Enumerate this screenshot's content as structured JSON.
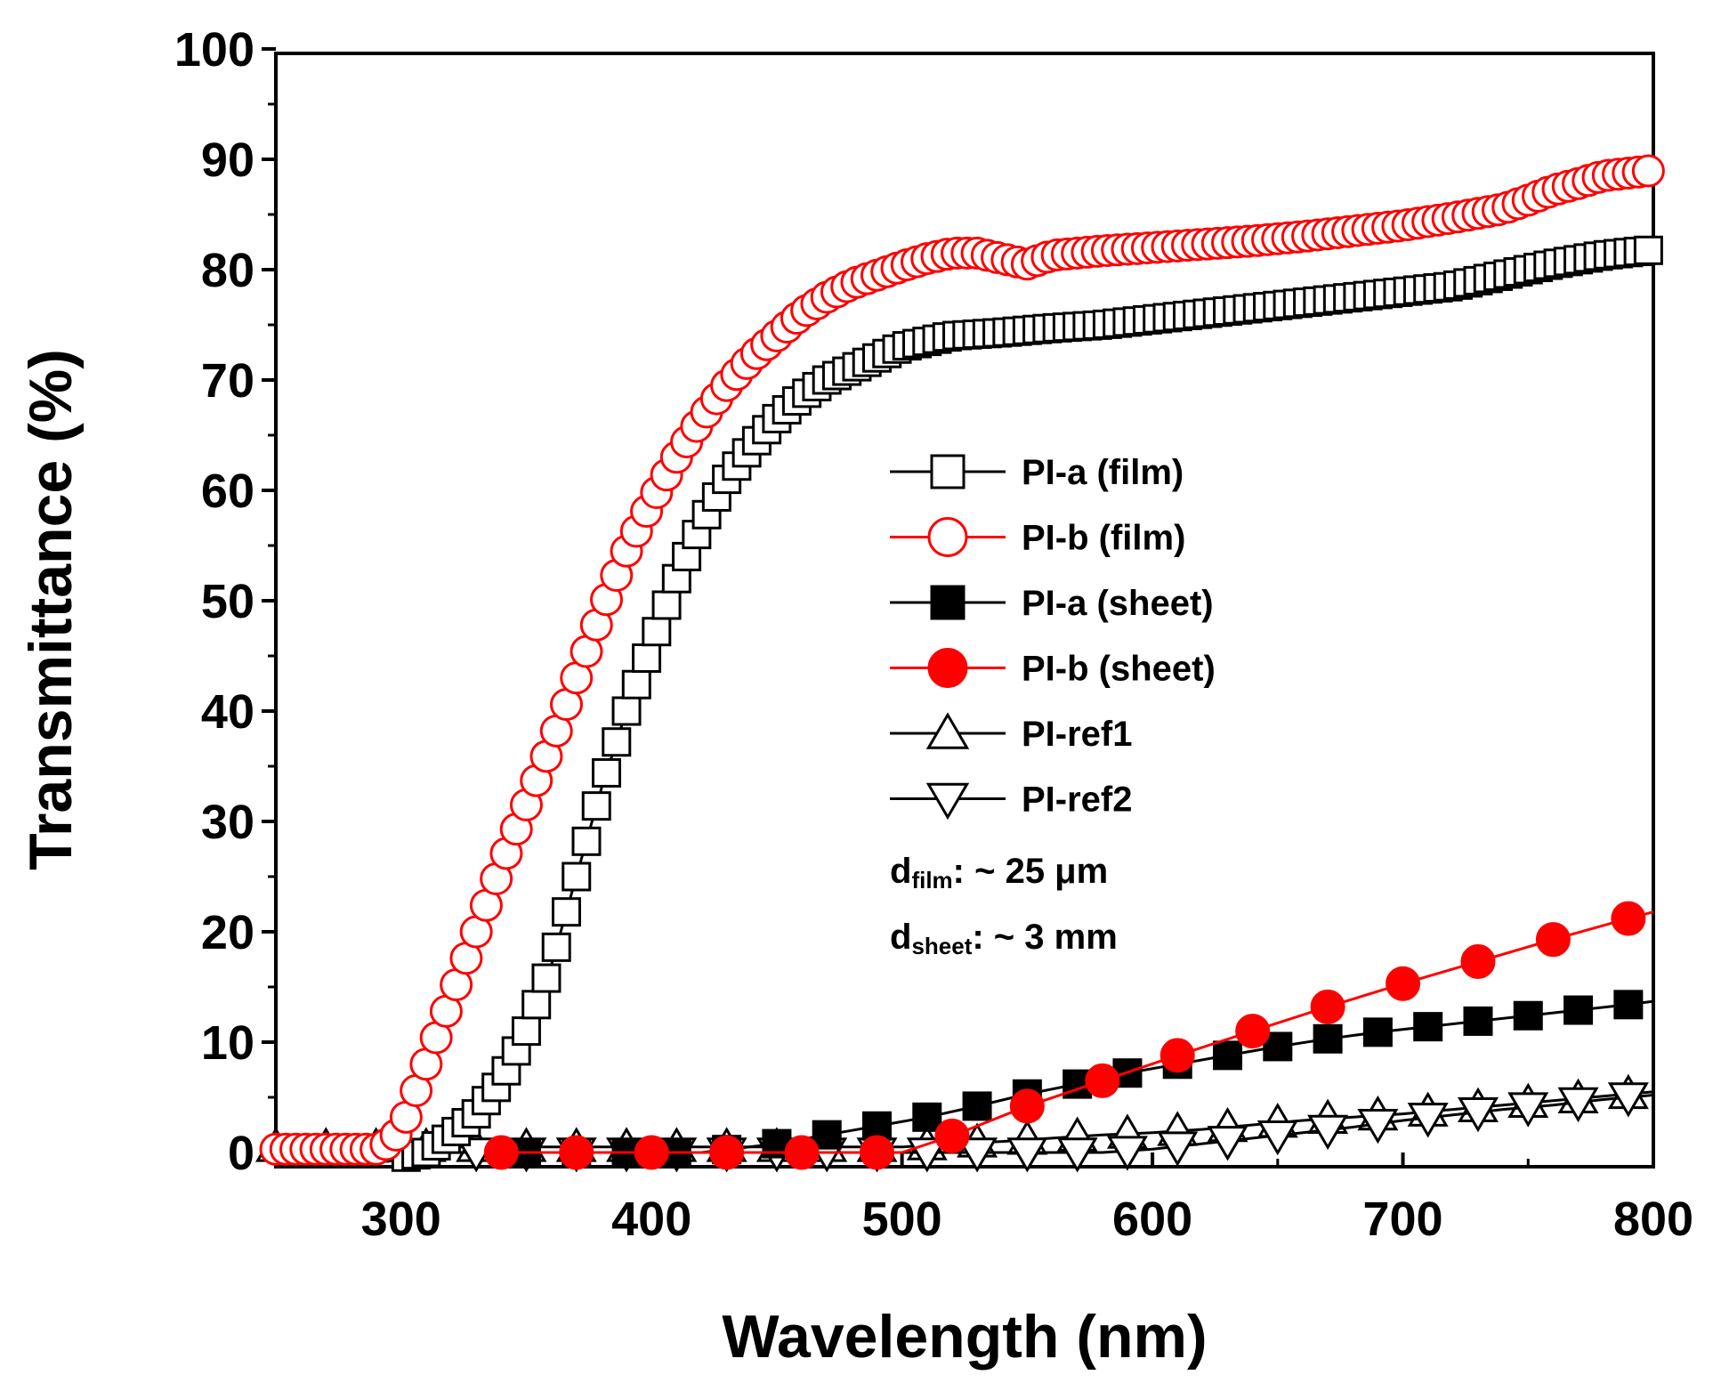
{
  "chart_data": {
    "type": "line",
    "title": "",
    "xlabel": "Wavelength (nm)",
    "ylabel": "Transmittance (%)",
    "xlim": [
      250,
      800
    ],
    "ylim": [
      -2,
      100
    ],
    "xticks": [
      300,
      400,
      500,
      600,
      700,
      800
    ],
    "yticks": [
      0,
      10,
      20,
      30,
      40,
      50,
      60,
      70,
      80,
      90,
      100
    ],
    "grid": false,
    "legend_position": "center-right",
    "series": [
      {
        "name": "PI-a (film)",
        "color": "#000000",
        "marker": "square-open",
        "curve": [
          [
            250,
            -0.8
          ],
          [
            295,
            -0.8
          ],
          [
            310,
            0
          ],
          [
            320,
            1.5
          ],
          [
            330,
            3.5
          ],
          [
            340,
            6.5
          ],
          [
            350,
            11
          ],
          [
            360,
            17
          ],
          [
            370,
            25
          ],
          [
            380,
            33
          ],
          [
            390,
            40
          ],
          [
            400,
            46
          ],
          [
            410,
            52
          ],
          [
            420,
            57
          ],
          [
            430,
            61
          ],
          [
            440,
            64
          ],
          [
            450,
            66.5
          ],
          [
            460,
            68.5
          ],
          [
            470,
            70
          ],
          [
            480,
            71
          ],
          [
            490,
            72
          ],
          [
            500,
            73
          ],
          [
            520,
            74
          ],
          [
            540,
            74.3
          ],
          [
            560,
            74.7
          ],
          [
            580,
            75
          ],
          [
            600,
            75.5
          ],
          [
            620,
            76
          ],
          [
            640,
            76.5
          ],
          [
            660,
            77
          ],
          [
            680,
            77.5
          ],
          [
            700,
            78
          ],
          [
            720,
            78.5
          ],
          [
            740,
            79.5
          ],
          [
            760,
            80.5
          ],
          [
            780,
            81.3
          ],
          [
            800,
            81.8
          ]
        ],
        "markers_x": [
          302,
          306,
          310,
          314,
          318,
          322,
          326,
          330,
          334,
          338,
          342,
          346,
          350,
          354,
          358,
          362,
          366,
          370,
          374,
          378,
          382,
          386,
          390,
          394,
          398,
          402,
          406,
          410,
          414,
          418,
          422,
          426,
          430,
          434,
          438,
          442,
          446,
          450,
          454,
          458,
          462,
          466,
          470,
          474,
          478,
          482,
          486,
          490,
          494,
          498,
          502,
          506,
          510,
          514,
          518,
          522,
          526,
          530,
          534,
          538,
          542,
          546,
          550,
          554,
          558,
          562,
          566,
          570,
          574,
          578,
          582,
          586,
          590,
          594,
          598,
          602,
          606,
          610,
          614,
          618,
          622,
          626,
          630,
          634,
          638,
          642,
          646,
          650,
          654,
          658,
          662,
          666,
          670,
          674,
          678,
          682,
          686,
          690,
          694,
          698,
          702,
          706,
          710,
          714,
          718,
          722,
          726,
          730,
          734,
          738,
          742,
          746,
          750,
          754,
          758,
          762,
          766,
          770,
          774,
          778,
          782,
          786,
          790,
          794,
          798
        ]
      },
      {
        "name": "PI-b (film)",
        "color": "#ff0000",
        "marker": "circle-open",
        "curve": [
          [
            250,
            0.3
          ],
          [
            292,
            0.3
          ],
          [
            300,
            2
          ],
          [
            310,
            8
          ],
          [
            320,
            14
          ],
          [
            330,
            20
          ],
          [
            340,
            26
          ],
          [
            350,
            31.5
          ],
          [
            360,
            37
          ],
          [
            370,
            43
          ],
          [
            380,
            49
          ],
          [
            390,
            54.5
          ],
          [
            400,
            59
          ],
          [
            410,
            63
          ],
          [
            420,
            66.5
          ],
          [
            430,
            69.5
          ],
          [
            440,
            72
          ],
          [
            450,
            74
          ],
          [
            460,
            76
          ],
          [
            470,
            77.5
          ],
          [
            480,
            78.7
          ],
          [
            490,
            79.5
          ],
          [
            500,
            80.3
          ],
          [
            510,
            81
          ],
          [
            520,
            81.5
          ],
          [
            530,
            81.5
          ],
          [
            540,
            81
          ],
          [
            550,
            80.5
          ],
          [
            560,
            81.3
          ],
          [
            580,
            81.7
          ],
          [
            600,
            82
          ],
          [
            620,
            82.3
          ],
          [
            640,
            82.6
          ],
          [
            660,
            83
          ],
          [
            680,
            83.5
          ],
          [
            700,
            84
          ],
          [
            720,
            84.7
          ],
          [
            740,
            85.5
          ],
          [
            750,
            86.3
          ],
          [
            760,
            87.2
          ],
          [
            770,
            87.8
          ],
          [
            780,
            88.5
          ],
          [
            800,
            89
          ]
        ],
        "markers_x": [
          250,
          254,
          258,
          262,
          266,
          270,
          274,
          278,
          282,
          286,
          290,
          294,
          298,
          302,
          306,
          310,
          314,
          318,
          322,
          326,
          330,
          334,
          338,
          342,
          346,
          350,
          354,
          358,
          362,
          366,
          370,
          374,
          378,
          382,
          386,
          390,
          394,
          398,
          402,
          406,
          410,
          414,
          418,
          422,
          426,
          430,
          434,
          438,
          442,
          446,
          450,
          454,
          458,
          462,
          466,
          470,
          474,
          478,
          482,
          486,
          490,
          494,
          498,
          502,
          506,
          510,
          514,
          518,
          522,
          526,
          530,
          534,
          538,
          542,
          546,
          550,
          554,
          558,
          562,
          566,
          570,
          574,
          578,
          582,
          586,
          590,
          594,
          598,
          602,
          606,
          610,
          614,
          618,
          622,
          626,
          630,
          634,
          638,
          642,
          646,
          650,
          654,
          658,
          662,
          666,
          670,
          674,
          678,
          682,
          686,
          690,
          694,
          698,
          702,
          706,
          710,
          714,
          718,
          722,
          726,
          730,
          734,
          738,
          742,
          746,
          750,
          754,
          758,
          762,
          766,
          770,
          774,
          778,
          782,
          786,
          790,
          794,
          798
        ]
      },
      {
        "name": "PI-a (sheet)",
        "color": "#000000",
        "marker": "square-filled",
        "curve": [
          [
            340,
            0
          ],
          [
            420,
            0
          ],
          [
            450,
            0.8
          ],
          [
            480,
            2
          ],
          [
            510,
            3.2
          ],
          [
            530,
            4.2
          ],
          [
            550,
            5.3
          ],
          [
            570,
            6.2
          ],
          [
            590,
            7.2
          ],
          [
            610,
            8
          ],
          [
            630,
            8.8
          ],
          [
            650,
            9.6
          ],
          [
            670,
            10.3
          ],
          [
            690,
            10.9
          ],
          [
            710,
            11.4
          ],
          [
            730,
            11.9
          ],
          [
            750,
            12.4
          ],
          [
            770,
            12.9
          ],
          [
            790,
            13.4
          ],
          [
            800,
            13.7
          ]
        ],
        "markers_x": [
          350,
          370,
          390,
          410,
          430,
          450,
          470,
          490,
          510,
          530,
          550,
          570,
          590,
          610,
          630,
          650,
          670,
          690,
          710,
          730,
          750,
          770,
          790
        ]
      },
      {
        "name": "PI-b (sheet)",
        "color": "#ff0000",
        "marker": "circle-filled",
        "curve": [
          [
            340,
            0
          ],
          [
            500,
            0
          ],
          [
            520,
            1.5
          ],
          [
            550,
            4.2
          ],
          [
            580,
            6.5
          ],
          [
            610,
            8.8
          ],
          [
            640,
            11
          ],
          [
            670,
            13.2
          ],
          [
            700,
            15.3
          ],
          [
            730,
            17.3
          ],
          [
            760,
            19.3
          ],
          [
            790,
            21.2
          ],
          [
            800,
            21.8
          ]
        ],
        "markers_x": [
          340,
          370,
          400,
          430,
          460,
          490,
          520,
          550,
          580,
          610,
          640,
          670,
          700,
          730,
          760,
          790
        ]
      },
      {
        "name": "PI-ref1",
        "color": "#000000",
        "marker": "triangle-up-open",
        "curve": [
          [
            250,
            0.5
          ],
          [
            500,
            0.5
          ],
          [
            520,
            0.8
          ],
          [
            540,
            1
          ],
          [
            560,
            1.3
          ],
          [
            580,
            1.6
          ],
          [
            600,
            1.8
          ],
          [
            620,
            2.1
          ],
          [
            640,
            2.5
          ],
          [
            660,
            2.9
          ],
          [
            680,
            3.2
          ],
          [
            700,
            3.5
          ],
          [
            720,
            3.9
          ],
          [
            740,
            4.3
          ],
          [
            760,
            4.7
          ],
          [
            780,
            5.1
          ],
          [
            800,
            5.5
          ]
        ],
        "markers_x": [
          250,
          270,
          290,
          310,
          330,
          350,
          370,
          390,
          410,
          430,
          450,
          470,
          490,
          510,
          530,
          550,
          570,
          590,
          610,
          630,
          650,
          670,
          690,
          710,
          730,
          750,
          770,
          790
        ]
      },
      {
        "name": "PI-ref2",
        "color": "#000000",
        "marker": "triangle-down-open",
        "curve": [
          [
            250,
            0
          ],
          [
            580,
            0
          ],
          [
            600,
            0.3
          ],
          [
            620,
            0.8
          ],
          [
            640,
            1.3
          ],
          [
            660,
            1.8
          ],
          [
            680,
            2.3
          ],
          [
            700,
            2.9
          ],
          [
            720,
            3.4
          ],
          [
            740,
            3.9
          ],
          [
            760,
            4.3
          ],
          [
            780,
            4.8
          ],
          [
            800,
            5.2
          ]
        ],
        "markers_x": [
          330,
          350,
          370,
          390,
          410,
          430,
          450,
          470,
          490,
          510,
          530,
          550,
          570,
          590,
          610,
          630,
          650,
          670,
          690,
          710,
          730,
          750,
          770,
          790
        ]
      }
    ],
    "annotations": [
      {
        "main": "d",
        "sub": "film",
        "rest": ": ~ 25 μm"
      },
      {
        "main": "d",
        "sub": "sheet",
        "rest": ": ~ 3 mm"
      }
    ]
  }
}
